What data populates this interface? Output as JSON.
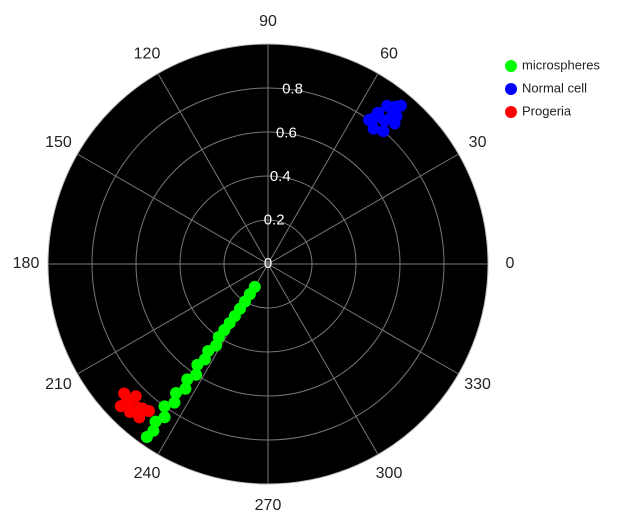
{
  "chart_data": {
    "type": "polar-scatter",
    "rlim": [
      0,
      1
    ],
    "rticks": [
      0,
      0.2,
      0.4,
      0.6,
      0.8
    ],
    "thetaticks": [
      0,
      30,
      60,
      90,
      120,
      150,
      180,
      210,
      240,
      270,
      300,
      330
    ],
    "grid": true,
    "legend": "upper-right-outside",
    "series": [
      {
        "name": "microspheres",
        "color": "#00ff00",
        "r": [
          0.12,
          0.16,
          0.2,
          0.24,
          0.28,
          0.32,
          0.36,
          0.4,
          0.44,
          0.48,
          0.52,
          0.56,
          0.6,
          0.64,
          0.68,
          0.72,
          0.76,
          0.8,
          0.84,
          0.88,
          0.92,
          0.96
        ],
        "theta": [
          240,
          239,
          238.5,
          238,
          237.5,
          237,
          236.5,
          236,
          237.5,
          235.5,
          236.5,
          235,
          237,
          235,
          236.5,
          234.5,
          236,
          234,
          236,
          234.5,
          235.5,
          235
        ]
      },
      {
        "name": "Normal cell",
        "color": "#0000ff",
        "r": [
          0.78,
          0.8,
          0.82,
          0.8,
          0.84,
          0.86,
          0.85,
          0.88,
          0.9,
          0.89,
          0.92,
          0.94
        ],
        "theta": [
          52,
          49,
          54,
          55,
          51,
          48,
          54,
          50,
          53,
          49,
          51,
          50
        ]
      },
      {
        "name": "Progeria",
        "color": "#ff0000",
        "r": [
          0.85,
          0.87,
          0.88,
          0.9,
          0.91,
          0.86,
          0.89,
          0.92,
          0.93,
          0.88
        ],
        "theta": [
          225,
          229,
          222,
          226,
          230,
          231,
          224,
          227,
          224,
          228
        ]
      }
    ]
  }
}
